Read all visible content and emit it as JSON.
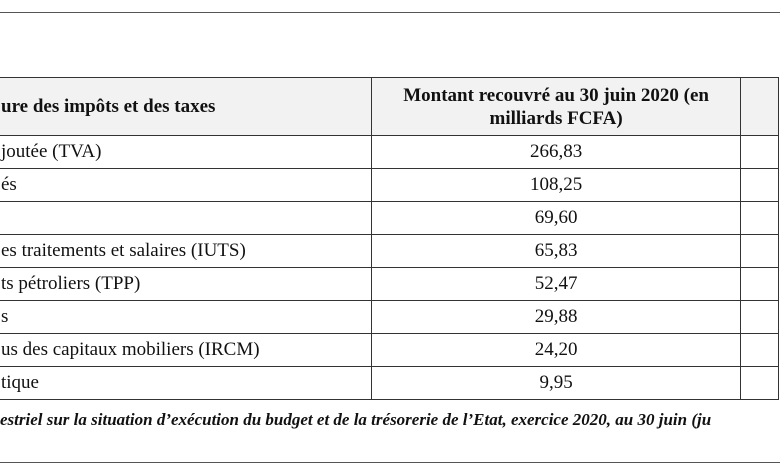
{
  "table": {
    "header": [
      "ure des impôts et des taxes",
      "Montant recouvré au 30 juin 2020 (en milliards FCFA)"
    ],
    "rows": [
      [
        "joutée (TVA)",
        "266,83"
      ],
      [
        "és",
        "108,25"
      ],
      [
        "",
        "69,60"
      ],
      [
        "es traitements et salaires (IUTS)",
        "65,83"
      ],
      [
        "ts pétroliers (TPP)",
        "52,47"
      ],
      [
        "s",
        "29,88"
      ],
      [
        "us des capitaux mobiliers (IRCM)",
        "24,20"
      ],
      [
        "tique",
        "9,95"
      ]
    ]
  },
  "caption": "estriel sur la situation d’exécution du budget et de la trésorerie de l’Etat, exercice 2020, au 30 juin (ju"
}
